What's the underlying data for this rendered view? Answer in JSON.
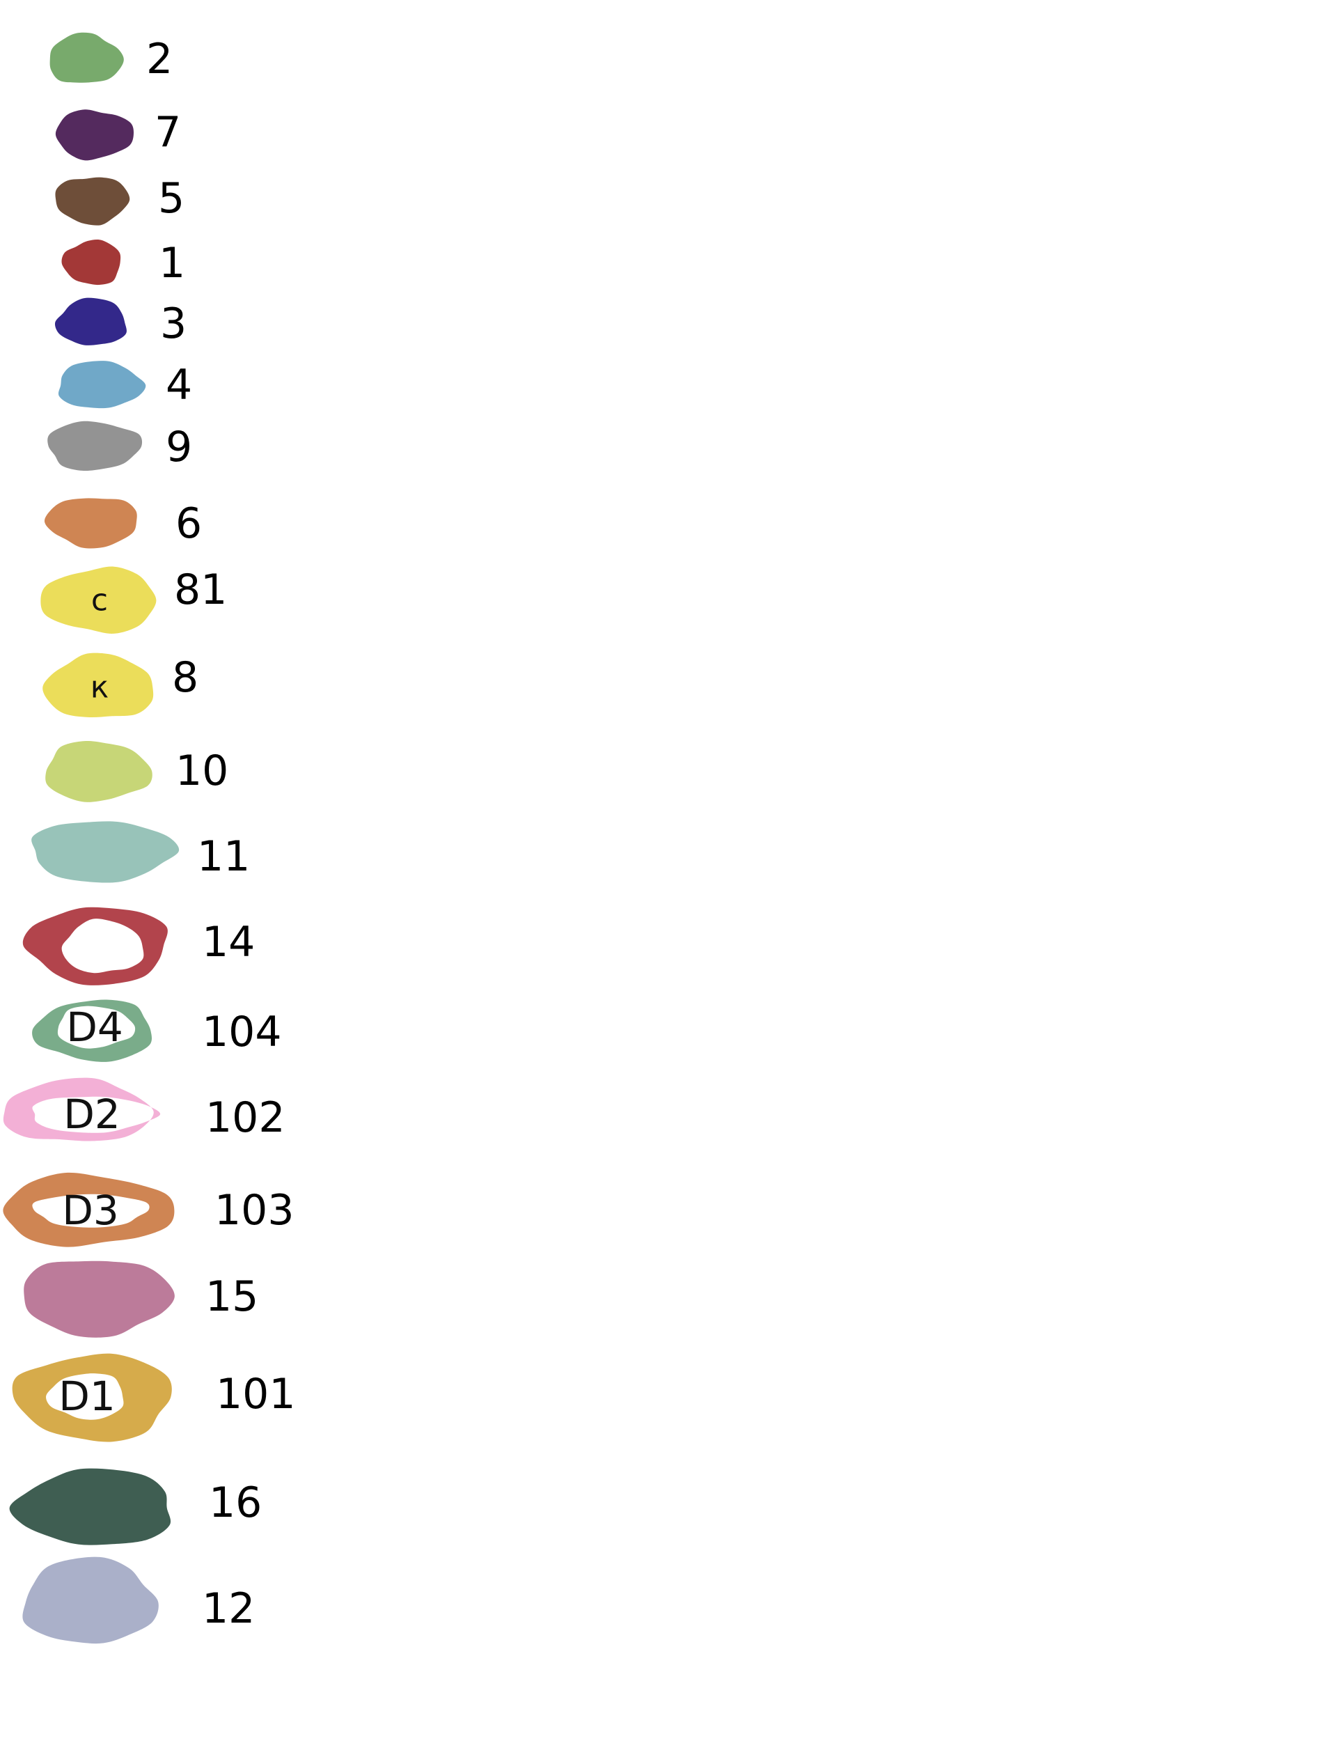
{
  "legend": {
    "items": [
      {
        "label": "2",
        "color": "#78aa6c",
        "style": "solid"
      },
      {
        "label": "7",
        "color": "#542a5e",
        "style": "solid"
      },
      {
        "label": "5",
        "color": "#6e4e39",
        "style": "solid"
      },
      {
        "label": "1",
        "color": "#a33837",
        "style": "solid"
      },
      {
        "label": "3",
        "color": "#33288a",
        "style": "solid"
      },
      {
        "label": "4",
        "color": "#70a8c8",
        "style": "solid"
      },
      {
        "label": "9",
        "color": "#939393",
        "style": "solid"
      },
      {
        "label": "6",
        "color": "#cf8553",
        "style": "solid"
      },
      {
        "label": "81",
        "color": "#ebdd5a",
        "style": "solid",
        "inner": "с"
      },
      {
        "label": "8",
        "color": "#ebdd5a",
        "style": "solid",
        "inner": "к"
      },
      {
        "label": "10",
        "color": "#c7d677",
        "style": "solid"
      },
      {
        "label": "11",
        "color": "#98c3b9",
        "style": "solid"
      },
      {
        "label": "14",
        "color": "#b2444c",
        "style": "ring"
      },
      {
        "label": "104",
        "color": "#7aac8a",
        "style": "ring",
        "inner": "D4"
      },
      {
        "label": "102",
        "color": "#f3b0d6",
        "style": "ring",
        "inner": "D2"
      },
      {
        "label": "103",
        "color": "#cf8553",
        "style": "ring",
        "inner": "D3"
      },
      {
        "label": "15",
        "color": "#bc7b9a",
        "style": "solid"
      },
      {
        "label": "101",
        "color": "#d6ab4b",
        "style": "ring",
        "inner": "D1"
      },
      {
        "label": "16",
        "color": "#3f5e52",
        "style": "solid"
      },
      {
        "label": "12",
        "color": "#aab0c9",
        "style": "solid"
      }
    ]
  }
}
